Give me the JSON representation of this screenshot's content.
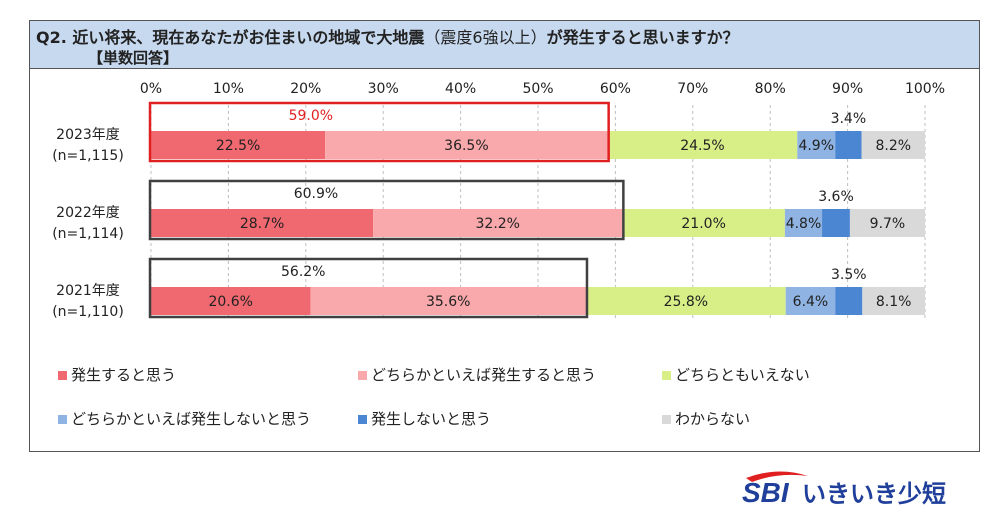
{
  "header": {
    "question": "Q2. 近い将来、現在あなたがお住まいの地域で大地震",
    "paren": "（震度6強以上）",
    "tail": "が発生すると思いますか？",
    "answer_type": "【単数回答】"
  },
  "chart_data": {
    "type": "bar",
    "orientation": "horizontal-stacked-100",
    "title": "Q2. 近い将来、現在あなたがお住まいの地域で大地震（震度6強以上）が発生すると思いますか？",
    "subtitle": "【単数回答】",
    "xlim": [
      0,
      100
    ],
    "ticks": [
      "0%",
      "10%",
      "20%",
      "30%",
      "40%",
      "50%",
      "60%",
      "70%",
      "80%",
      "90%",
      "100%"
    ],
    "categories": [
      {
        "year": "2023年度",
        "n": "(n=1,115)"
      },
      {
        "year": "2022年度",
        "n": "(n=1,114)"
      },
      {
        "year": "2021年度",
        "n": "(n=1,110)"
      }
    ],
    "series": [
      {
        "name": "発生すると思う",
        "color": "#f06870",
        "values": [
          22.5,
          28.7,
          20.6
        ],
        "labels": [
          "22.5%",
          "28.7%",
          "20.6%"
        ]
      },
      {
        "name": "どちらかといえば発生すると思う",
        "color": "#f9a8ab",
        "values": [
          36.5,
          32.2,
          35.6
        ],
        "labels": [
          "36.5%",
          "32.2%",
          "35.6%"
        ]
      },
      {
        "name": "どちらともいえない",
        "color": "#d8ef88",
        "values": [
          24.5,
          21.0,
          25.8
        ],
        "labels": [
          "24.5%",
          "21.0%",
          "25.8%"
        ]
      },
      {
        "name": "どちらかといえば発生しないと思う",
        "color": "#8fb4e3",
        "values": [
          4.9,
          4.8,
          6.4
        ],
        "labels": [
          "4.9%",
          "4.8%",
          "6.4%"
        ]
      },
      {
        "name": "発生しないと思う",
        "color": "#4a86d2",
        "values": [
          3.4,
          3.6,
          3.5
        ],
        "labels": [
          "3.4%",
          "3.6%",
          "3.5%"
        ]
      },
      {
        "name": "わからない",
        "color": "#d9d9d9",
        "values": [
          8.2,
          9.7,
          8.1
        ],
        "labels": [
          "8.2%",
          "9.7%",
          "8.1%"
        ]
      }
    ],
    "totals": {
      "description": "発生すると思う + どちらかといえば発生すると思う",
      "values": [
        59.0,
        60.9,
        56.2
      ],
      "labels": [
        "59.0%",
        "60.9%",
        "56.2%"
      ],
      "box_colors": [
        "#e02020",
        "#404040",
        "#404040"
      ],
      "label_colors": [
        "#e02020",
        "#222222",
        "#222222"
      ]
    },
    "legend_position": "bottom"
  },
  "logo": {
    "text_sbi": "SBI",
    "text_jp": "いきいき少短",
    "color": "#1f3f9a"
  }
}
